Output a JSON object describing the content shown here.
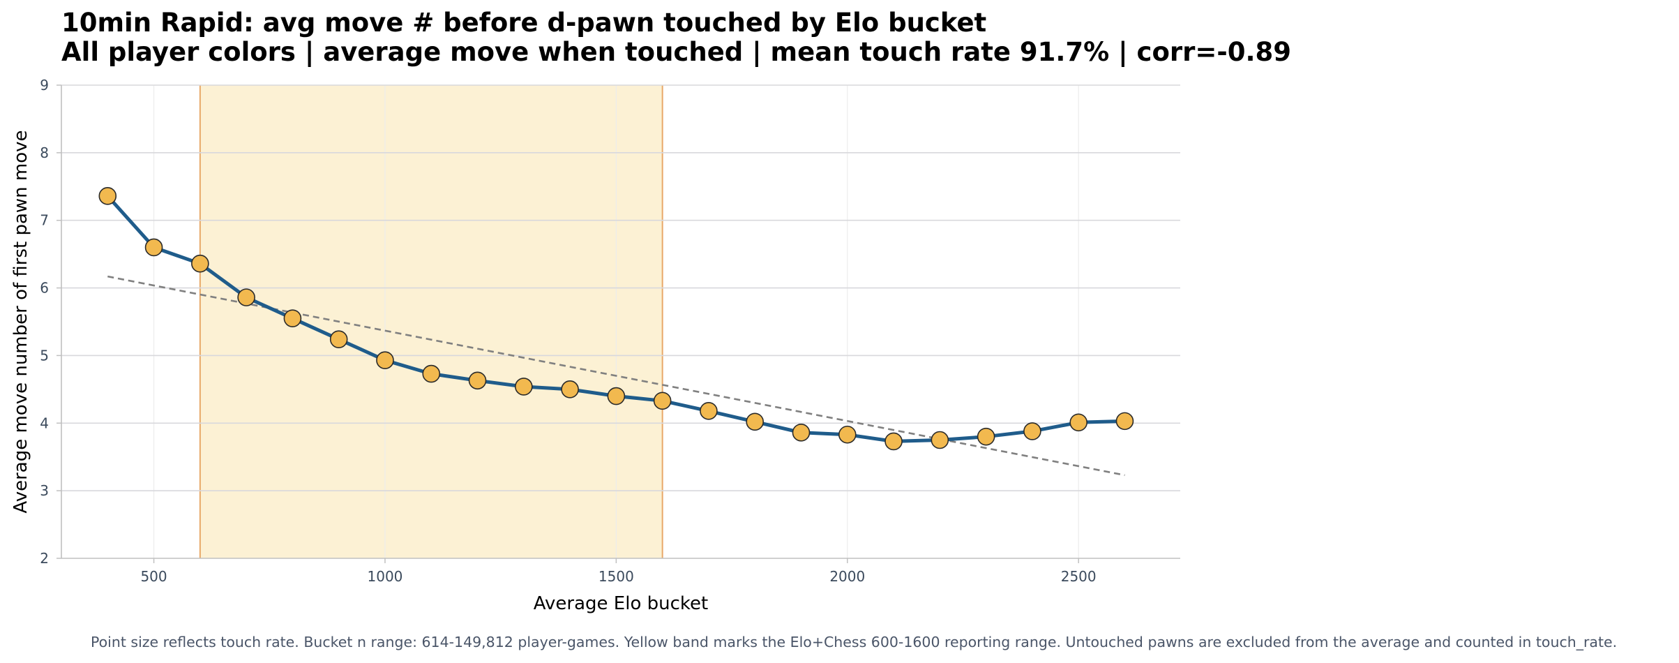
{
  "chart_data": {
    "type": "line",
    "title": "10min Rapid: avg move # before d-pawn touched by Elo bucket",
    "subtitle": "All player colors | average move when touched | mean touch rate 91.7% | corr=-0.89",
    "xlabel": "Average Elo bucket",
    "ylabel": "Average move number of first pawn move",
    "xlim": [
      300,
      2720
    ],
    "ylim": [
      2,
      9
    ],
    "xticks": [
      500,
      1000,
      1500,
      2000,
      2500
    ],
    "yticks": [
      2,
      3,
      4,
      5,
      6,
      7,
      8,
      9
    ],
    "grid": true,
    "series": [
      {
        "x": [
          400,
          500,
          600,
          700,
          800,
          900,
          1000,
          1100,
          1200,
          1300,
          1400,
          1500,
          1600,
          1700,
          1800,
          1900,
          2000,
          2100,
          2200,
          2300,
          2400,
          2500,
          2600
        ],
        "values": [
          7.36,
          6.6,
          6.36,
          5.86,
          5.55,
          5.24,
          4.93,
          4.73,
          4.63,
          4.54,
          4.5,
          4.4,
          4.33,
          4.18,
          4.02,
          3.86,
          3.83,
          3.73,
          3.75,
          3.8,
          3.88,
          4.01,
          4.03
        ]
      }
    ],
    "trend_line": {
      "x": [
        400,
        2600
      ],
      "y": [
        6.17,
        3.23
      ]
    },
    "band": {
      "x": [
        600,
        1600
      ]
    },
    "colors": {
      "line": "#1f5c8b",
      "marker_fill": "#f2b94f",
      "marker_edge": "#2a2a2a",
      "trend": "#808080",
      "band_fill": "#fcf1d4",
      "band_edge": "#e8a868",
      "grid_h": "#d8d8dc",
      "grid_v": "#ececec",
      "axis": "#c0c0c0",
      "tick_label": "#3b4a5c"
    }
  },
  "footnote": "Point size reflects touch rate. Bucket n range: 614-149,812 player-games. Yellow band marks the Elo+Chess 600-1600 reporting range. Untouched pawns are excluded from the average and counted in touch_rate."
}
